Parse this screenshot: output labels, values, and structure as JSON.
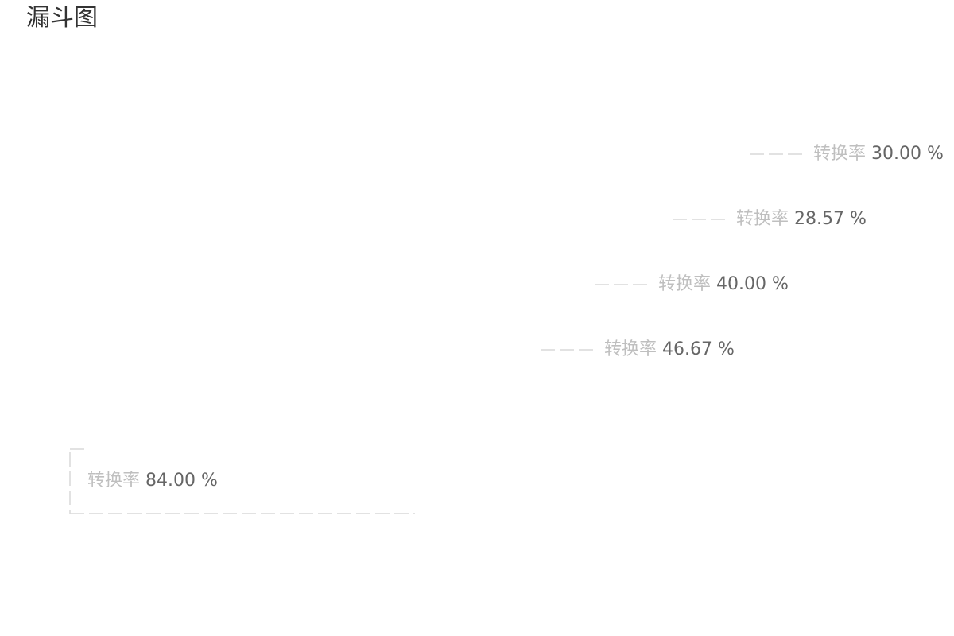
{
  "chart_data": {
    "type": "funnel",
    "title": "漏斗图",
    "conversion_label": "转换率",
    "steps": [
      {
        "conversion": "30.00 %"
      },
      {
        "conversion": "28.57 %"
      },
      {
        "conversion": "40.00 %"
      },
      {
        "conversion": "46.67 %"
      }
    ],
    "overall": {
      "conversion": "84.00 %"
    },
    "colors": {
      "guide_line": "#d9d9d9",
      "label_text": "#bfbfbf",
      "value_text": "#666666",
      "title_text": "#333333"
    }
  }
}
